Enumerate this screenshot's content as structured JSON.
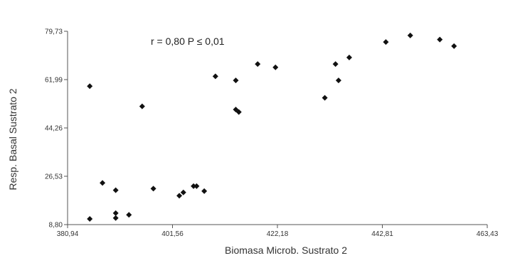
{
  "chart_data": {
    "type": "scatter",
    "title": "",
    "xlabel": "Biomasa Microb. Sustrato 2",
    "ylabel": "Resp. Basal Sustrato 2",
    "annotation": "r = 0,80 P ≤ 0,01",
    "xlim": [
      380.94,
      463.43
    ],
    "ylim": [
      8.8,
      79.73
    ],
    "xticks": [
      "380,94",
      "401,56",
      "422,18",
      "442,81",
      "463,43"
    ],
    "yticks": [
      "8,80",
      "26,53",
      "44,26",
      "61,99",
      "79,73"
    ],
    "grid": false,
    "marker_color": "#111111",
    "points": [
      {
        "x": 385.3,
        "y": 59.6
      },
      {
        "x": 385.3,
        "y": 10.9
      },
      {
        "x": 387.8,
        "y": 24.1
      },
      {
        "x": 390.4,
        "y": 21.4
      },
      {
        "x": 390.4,
        "y": 13.0
      },
      {
        "x": 390.4,
        "y": 11.2
      },
      {
        "x": 393.0,
        "y": 12.4
      },
      {
        "x": 395.6,
        "y": 52.2
      },
      {
        "x": 397.8,
        "y": 22.0
      },
      {
        "x": 402.9,
        "y": 19.4
      },
      {
        "x": 403.7,
        "y": 20.6
      },
      {
        "x": 405.7,
        "y": 22.9
      },
      {
        "x": 406.3,
        "y": 22.9
      },
      {
        "x": 407.8,
        "y": 21.1
      },
      {
        "x": 410.0,
        "y": 63.2
      },
      {
        "x": 414.0,
        "y": 61.7
      },
      {
        "x": 414.0,
        "y": 51.0
      },
      {
        "x": 414.6,
        "y": 50.1
      },
      {
        "x": 418.3,
        "y": 67.7
      },
      {
        "x": 421.8,
        "y": 66.5
      },
      {
        "x": 431.5,
        "y": 55.3
      },
      {
        "x": 433.6,
        "y": 67.7
      },
      {
        "x": 434.2,
        "y": 61.7
      },
      {
        "x": 436.3,
        "y": 70.1
      },
      {
        "x": 443.5,
        "y": 75.8
      },
      {
        "x": 448.3,
        "y": 78.2
      },
      {
        "x": 454.1,
        "y": 76.7
      },
      {
        "x": 456.9,
        "y": 74.3
      }
    ]
  }
}
